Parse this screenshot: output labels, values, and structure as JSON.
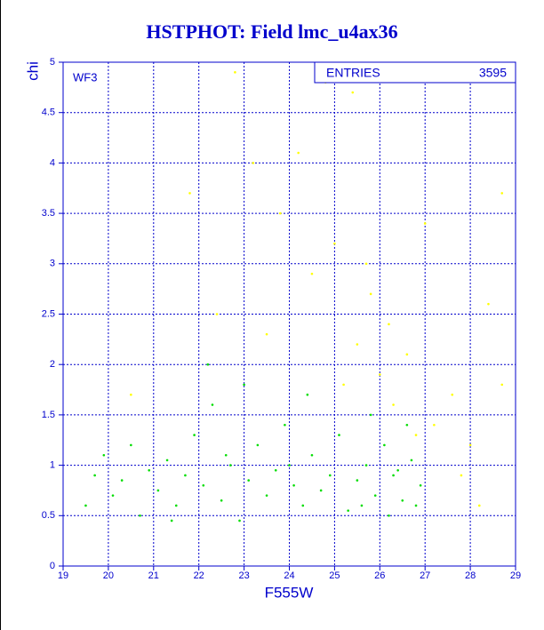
{
  "chart_data": {
    "type": "scatter",
    "title": "HSTPHOT: Field lmc_u4ax36",
    "x_label": "F555W",
    "y_label": "chi",
    "panel_label": "WF3",
    "stats_label": "ENTRIES",
    "stats_value": 3595,
    "xlim": [
      19,
      29
    ],
    "ylim": [
      0,
      5
    ],
    "xticks": [
      19,
      20,
      21,
      22,
      23,
      24,
      25,
      26,
      27,
      28,
      29
    ],
    "yticks": [
      0,
      0.5,
      1,
      1.5,
      2,
      2.5,
      3,
      3.5,
      4,
      4.5,
      5
    ],
    "grid": true,
    "series": [
      {
        "name": "green",
        "color": "#00dd00",
        "x": [
          19.5,
          19.7,
          19.9,
          20.1,
          20.3,
          20.5,
          20.7,
          20.9,
          21.1,
          21.3,
          21.5,
          21.7,
          21.9,
          22.1,
          22.3,
          22.5,
          22.7,
          22.9,
          23.1,
          23.3,
          23.5,
          23.7,
          23.9,
          24.1,
          24.3,
          24.5,
          24.7,
          24.9,
          25.1,
          25.3,
          25.5,
          25.7,
          25.9,
          26.1,
          26.3,
          26.5,
          26.7,
          26.9,
          26.6,
          26.2,
          25.8,
          24.4,
          22.2,
          21.4,
          23.0,
          26.8,
          26.4,
          25.6,
          24.0,
          22.6
        ],
        "values": [
          0.6,
          0.9,
          1.1,
          0.7,
          0.85,
          1.2,
          0.5,
          0.95,
          0.75,
          1.05,
          0.6,
          0.9,
          1.3,
          0.8,
          1.6,
          0.65,
          1.0,
          0.45,
          0.85,
          1.2,
          0.7,
          0.95,
          1.4,
          0.8,
          0.6,
          1.1,
          0.75,
          0.9,
          1.3,
          0.55,
          0.85,
          1.0,
          0.7,
          1.2,
          0.9,
          0.65,
          1.05,
          0.8,
          1.4,
          0.5,
          1.5,
          1.7,
          2.0,
          0.45,
          1.8,
          0.6,
          0.95,
          0.6,
          1.0,
          1.1
        ]
      },
      {
        "name": "yellow",
        "color": "#ffff00",
        "x": [
          25.2,
          25.5,
          25.8,
          26.0,
          26.3,
          26.6,
          27.2,
          27.6,
          28.0,
          28.4,
          28.7,
          25.0,
          24.5,
          23.8,
          23.2,
          22.8,
          24.8,
          25.4,
          27.0,
          28.7,
          21.8,
          22.4,
          23.5,
          26.8,
          27.8,
          28.2,
          25.7,
          26.2,
          24.2,
          20.5
        ],
        "values": [
          1.8,
          2.2,
          2.7,
          1.9,
          1.6,
          2.1,
          1.4,
          1.7,
          1.2,
          2.6,
          1.8,
          3.2,
          2.9,
          3.5,
          4.0,
          4.9,
          4.8,
          4.7,
          3.4,
          3.7,
          3.7,
          2.5,
          2.3,
          1.3,
          0.9,
          0.6,
          3.0,
          2.4,
          4.1,
          1.7
        ]
      }
    ]
  }
}
